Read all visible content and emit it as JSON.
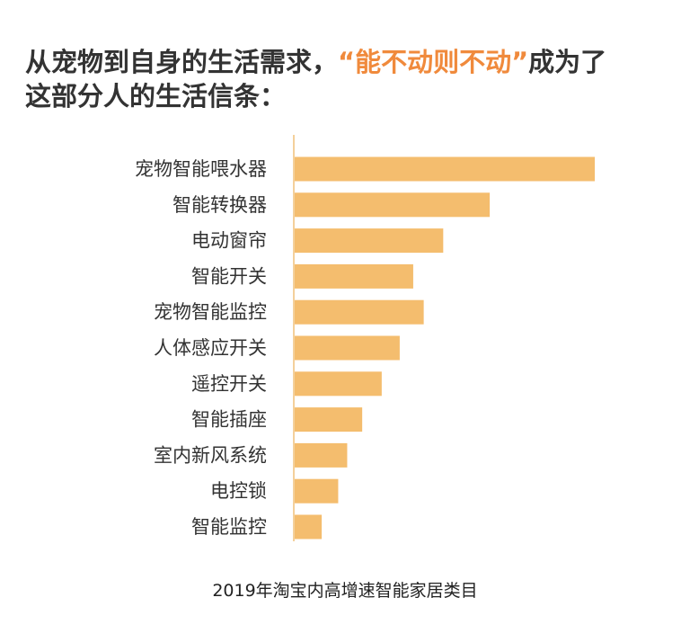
{
  "headline": {
    "part1": "从宠物到自身的生活需求，",
    "open_quote": "“",
    "highlight": "能不动则不动",
    "close_quote": "”",
    "part2": "成为了",
    "line2": "这部分人的生活信条："
  },
  "caption": "2019年淘宝内高增速智能家居类目",
  "colors": {
    "bar": "#f4bd6e",
    "axis": "#f0c17a",
    "highlight": "#f08a3c",
    "text": "#333333"
  },
  "chart_data": {
    "type": "bar",
    "orientation": "horizontal",
    "categories": [
      "宠物智能喂水器",
      "智能转换器",
      "电动窗帘",
      "智能开关",
      "宠物智能监控",
      "人体感应开关",
      "遥控开关",
      "智能插座",
      "室内新风系统",
      "电控锁",
      "智能监控"
    ],
    "values": [
      100,
      65,
      49.5,
      39.5,
      43,
      35,
      29,
      22.5,
      17.5,
      14.5,
      9
    ],
    "title": "",
    "xlabel": "",
    "ylabel": "",
    "xlim": [
      0,
      100
    ],
    "grid": false,
    "legend": "none"
  }
}
